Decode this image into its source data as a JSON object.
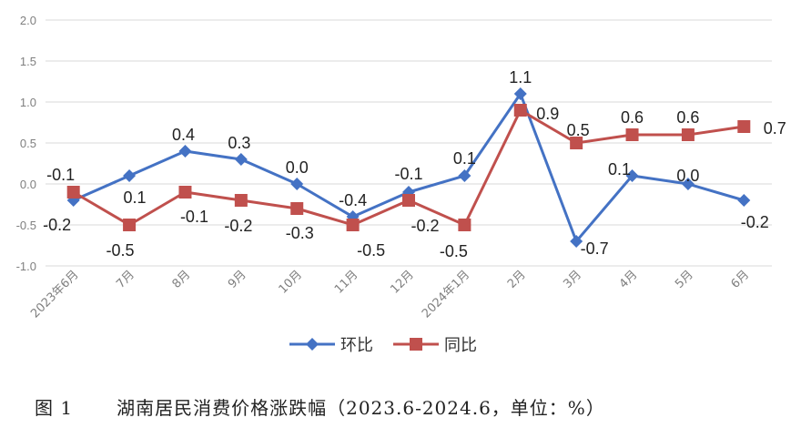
{
  "chart_data": {
    "type": "line",
    "categories": [
      "2023年6月",
      "7月",
      "8月",
      "9月",
      "10月",
      "11月",
      "12月",
      "2024年1月",
      "2月",
      "3月",
      "4月",
      "5月",
      "6月"
    ],
    "series": [
      {
        "name": "环比",
        "color": "#4472c4",
        "marker": "diamond",
        "values": [
          -0.2,
          0.1,
          0.4,
          0.3,
          0.0,
          -0.4,
          -0.1,
          0.1,
          1.1,
          -0.7,
          0.1,
          0.0,
          -0.2
        ],
        "labels": [
          "-0.2",
          "0.1",
          "0.4",
          "0.3",
          "0.0",
          "-0.4",
          "-0.1",
          "0.1",
          "1.1",
          "-0.7",
          "0.1",
          "0.0",
          "-0.2"
        ]
      },
      {
        "name": "同比",
        "color": "#c0504d",
        "marker": "square",
        "values": [
          -0.1,
          -0.5,
          -0.1,
          -0.2,
          -0.3,
          -0.5,
          -0.2,
          -0.5,
          0.9,
          0.5,
          0.6,
          0.6,
          0.7
        ],
        "labels": [
          "-0.1",
          "-0.5",
          "-0.1",
          "-0.2",
          "-0.3",
          "-0.5",
          "-0.2",
          "-0.5",
          "0.9",
          "0.5",
          "0.6",
          "0.6",
          "0.7"
        ]
      }
    ],
    "yticks": [
      "2.0",
      "1.5",
      "1.0",
      "0.5",
      "0.0",
      "-0.5",
      "-1.0"
    ],
    "ylim": [
      -1.0,
      2.0
    ],
    "grid": true,
    "legend": "bottom"
  },
  "caption": {
    "figure_no": "图 1",
    "text": "湖南居民消费价格涨跌幅（2023.6-2024.6，单位：%）"
  }
}
